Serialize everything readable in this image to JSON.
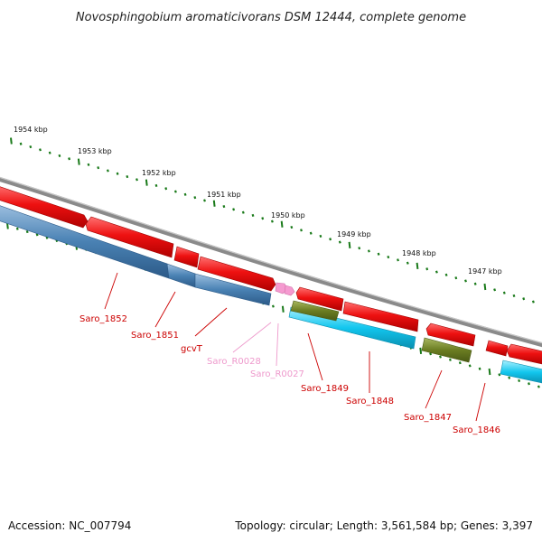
{
  "title": "Novosphingobium aromaticivorans DSM 12444, complete genome",
  "footer": {
    "accession": "Accession: NC_007794",
    "summary": "Topology: circular; Length: 3,561,584 bp; Genes: 3,397"
  },
  "scale_labels": [
    "1954 kbp",
    "1953 kbp",
    "1952 kbp",
    "1951 kbp",
    "1950 kbp",
    "1949 kbp",
    "1948 kbp",
    "1947 kbp"
  ],
  "gene_labels": [
    "Saro_1852",
    "Saro_1851",
    "gcvT",
    "Saro_R0028",
    "Saro_R0027",
    "Saro_1849",
    "Saro_1848",
    "Saro_1847",
    "Saro_1846"
  ],
  "colors": {
    "backbone": "#8a8a8a",
    "cds_forward": "#ee1111",
    "cds_reverse_blue": "#4a82b4",
    "cds_cyan": "#12c6ee",
    "cds_olive": "#6b7d22",
    "rna": "#f59ad0",
    "tick": "#1a7a1a",
    "label_red": "#cc0000",
    "label_pink": "#ee99cc"
  }
}
